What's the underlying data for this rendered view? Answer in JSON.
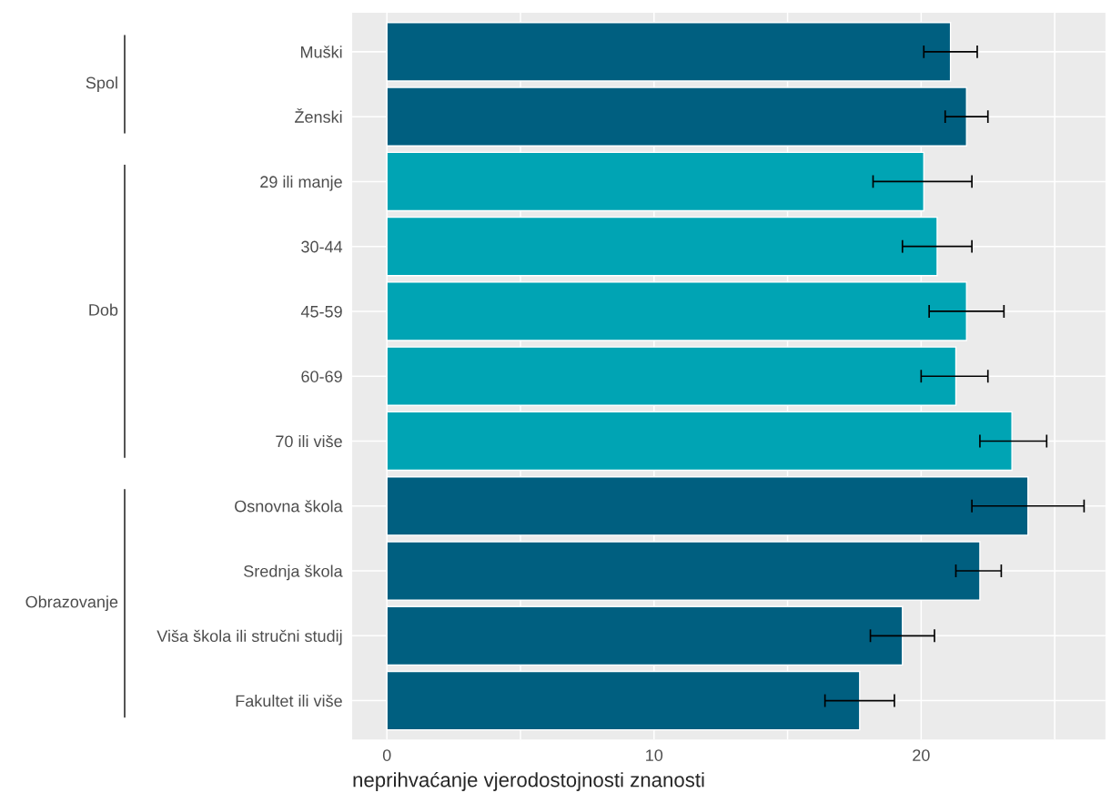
{
  "chart_data": {
    "type": "bar",
    "orientation": "horizontal",
    "xlabel": "neprihvaćanje vjerodostojnosti znanosti",
    "categories": [
      "Muški",
      "Ženski",
      "29 ili manje",
      "30-44",
      "45-59",
      "60-69",
      "70 ili više",
      "Osnovna škola",
      "Srednja škola",
      "Viša škola ili stručni studij",
      "Fakultet ili više"
    ],
    "values": [
      21.1,
      21.7,
      20.1,
      20.6,
      21.7,
      21.3,
      23.4,
      24.0,
      22.2,
      19.3,
      17.7
    ],
    "errors": [
      [
        20.1,
        22.1
      ],
      [
        20.9,
        22.5
      ],
      [
        18.2,
        21.9
      ],
      [
        19.3,
        21.9
      ],
      [
        20.3,
        23.1
      ],
      [
        20.0,
        22.5
      ],
      [
        22.2,
        24.7
      ],
      [
        21.9,
        26.1
      ],
      [
        21.3,
        23.0
      ],
      [
        18.1,
        20.5
      ],
      [
        16.4,
        19.0
      ]
    ],
    "colors": [
      "#005f80",
      "#005f80",
      "#00a4b4",
      "#00a4b4",
      "#00a4b4",
      "#00a4b4",
      "#00a4b4",
      "#005f80",
      "#005f80",
      "#005f80",
      "#005f80"
    ],
    "xlim": [
      -1.3,
      26.9
    ],
    "xticks": [
      0,
      {
        "value": 5,
        "label": null
      },
      10,
      {
        "value": 15,
        "label": null
      },
      20,
      {
        "value": 25,
        "label": null
      }
    ],
    "annotations": [
      "Spol",
      "Dob",
      "Obrazovanje"
    ],
    "grid": true
  }
}
